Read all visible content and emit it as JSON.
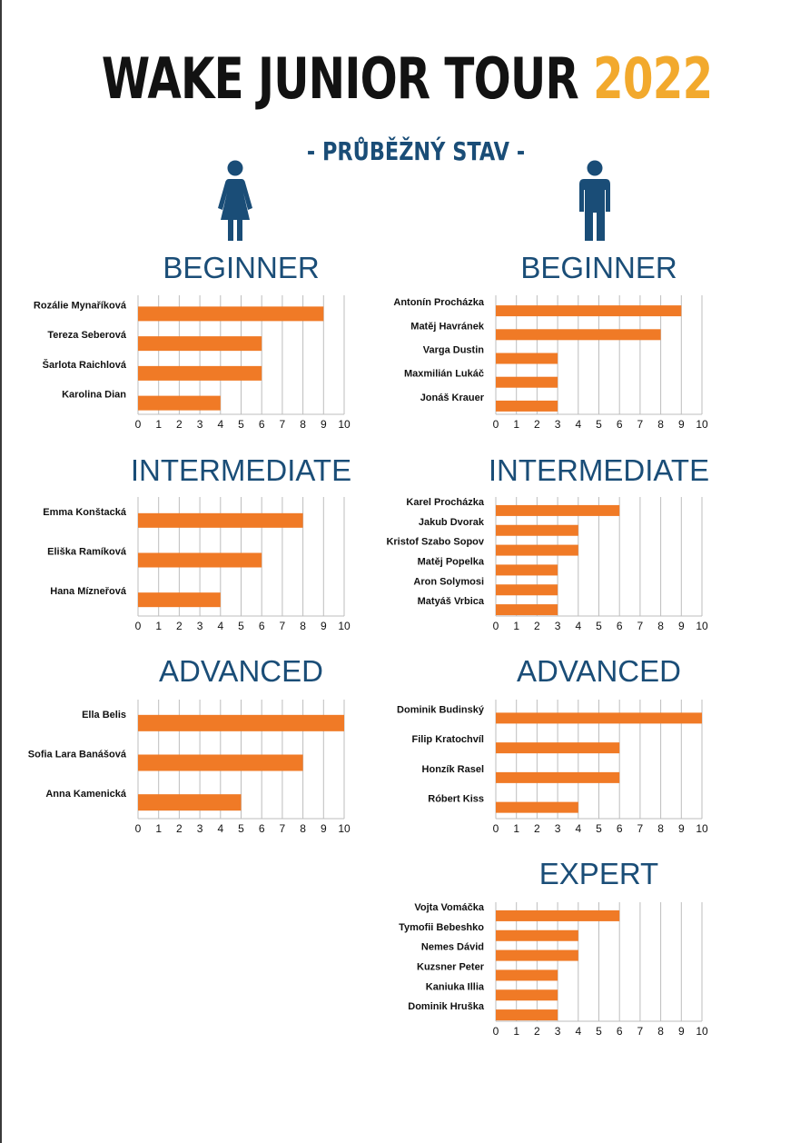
{
  "header": {
    "title_main": "WAKE JUNIOR TOUR",
    "title_year": "2022",
    "subtitle": "- PRŮBĚŽNÝ STAV -"
  },
  "icons": {
    "women": "woman-icon",
    "men": "man-icon"
  },
  "colors": {
    "bar": "#f07a26",
    "heading": "#1a4d77",
    "title_year": "#f2a92d",
    "title_main": "#121212",
    "grid": "#bdbdbd"
  },
  "chart_data": [
    {
      "type": "bar",
      "orientation": "horizontal",
      "group": "women",
      "title": "BEGINNER",
      "categories": [
        "Rozálie Mynaříková",
        "Tereza Seberová",
        "Šarlota Raichlová",
        "Karolina Dian"
      ],
      "values": [
        9,
        6,
        6,
        4
      ],
      "xlim": [
        0,
        10
      ],
      "xticks": [
        "0",
        "1",
        "2",
        "3",
        "4",
        "5",
        "6",
        "7",
        "8",
        "9",
        "10"
      ],
      "grid": true
    },
    {
      "type": "bar",
      "orientation": "horizontal",
      "group": "men",
      "title": "BEGINNER",
      "categories": [
        "Antonín Procházka",
        "Matěj Havránek",
        "Varga Dustin",
        "Maxmilián Lukáč",
        "Jonáš Krauer"
      ],
      "values": [
        9,
        8,
        3,
        3,
        3
      ],
      "xlim": [
        0,
        10
      ],
      "xticks": [
        "0",
        "1",
        "2",
        "3",
        "4",
        "5",
        "6",
        "7",
        "8",
        "9",
        "10"
      ],
      "grid": true
    },
    {
      "type": "bar",
      "orientation": "horizontal",
      "group": "women",
      "title": "INTERMEDIATE",
      "categories": [
        "Emma Konštacká",
        "Eliška Ramíková",
        "Hana Mízneřová"
      ],
      "values": [
        8,
        6,
        4
      ],
      "xlim": [
        0,
        10
      ],
      "xticks": [
        "0",
        "1",
        "2",
        "3",
        "4",
        "5",
        "6",
        "7",
        "8",
        "9",
        "10"
      ],
      "grid": true
    },
    {
      "type": "bar",
      "orientation": "horizontal",
      "group": "men",
      "title": "INTERMEDIATE",
      "categories": [
        "Karel Procházka",
        "Jakub Dvorak",
        "Kristof Szabo Sopov",
        "Matěj Popelka",
        "Aron Solymosi",
        "Matyáš Vrbica"
      ],
      "values": [
        6,
        4,
        4,
        3,
        3,
        3
      ],
      "xlim": [
        0,
        10
      ],
      "xticks": [
        "0",
        "1",
        "2",
        "3",
        "4",
        "5",
        "6",
        "7",
        "8",
        "9",
        "10"
      ],
      "grid": true
    },
    {
      "type": "bar",
      "orientation": "horizontal",
      "group": "women",
      "title": "ADVANCED",
      "categories": [
        "Ella Belis",
        "Sofia Lara Banášová",
        "Anna Kamenická"
      ],
      "values": [
        10,
        8,
        5
      ],
      "xlim": [
        0,
        10
      ],
      "xticks": [
        "0",
        "1",
        "2",
        "3",
        "4",
        "5",
        "6",
        "7",
        "8",
        "9",
        "10"
      ],
      "grid": true
    },
    {
      "type": "bar",
      "orientation": "horizontal",
      "group": "men",
      "title": "ADVANCED",
      "categories": [
        "Dominik Budinský",
        "Filip Kratochvíl",
        "Honzík Rasel",
        "Róbert Kiss"
      ],
      "values": [
        10,
        6,
        6,
        4
      ],
      "xlim": [
        0,
        10
      ],
      "xticks": [
        "0",
        "1",
        "2",
        "3",
        "4",
        "5",
        "6",
        "7",
        "8",
        "9",
        "10"
      ],
      "grid": true
    },
    {
      "type": "bar",
      "orientation": "horizontal",
      "group": "men",
      "title": "EXPERT",
      "categories": [
        "Vojta Vomáčka",
        "Tymofii Bebeshko",
        "Nemes Dávid",
        "Kuzsner Peter",
        "Kaniuka Illia",
        "Dominik Hruška"
      ],
      "values": [
        6,
        4,
        4,
        3,
        3,
        3
      ],
      "xlim": [
        0,
        10
      ],
      "xticks": [
        "0",
        "1",
        "2",
        "3",
        "4",
        "5",
        "6",
        "7",
        "8",
        "9",
        "10"
      ],
      "grid": true
    }
  ]
}
